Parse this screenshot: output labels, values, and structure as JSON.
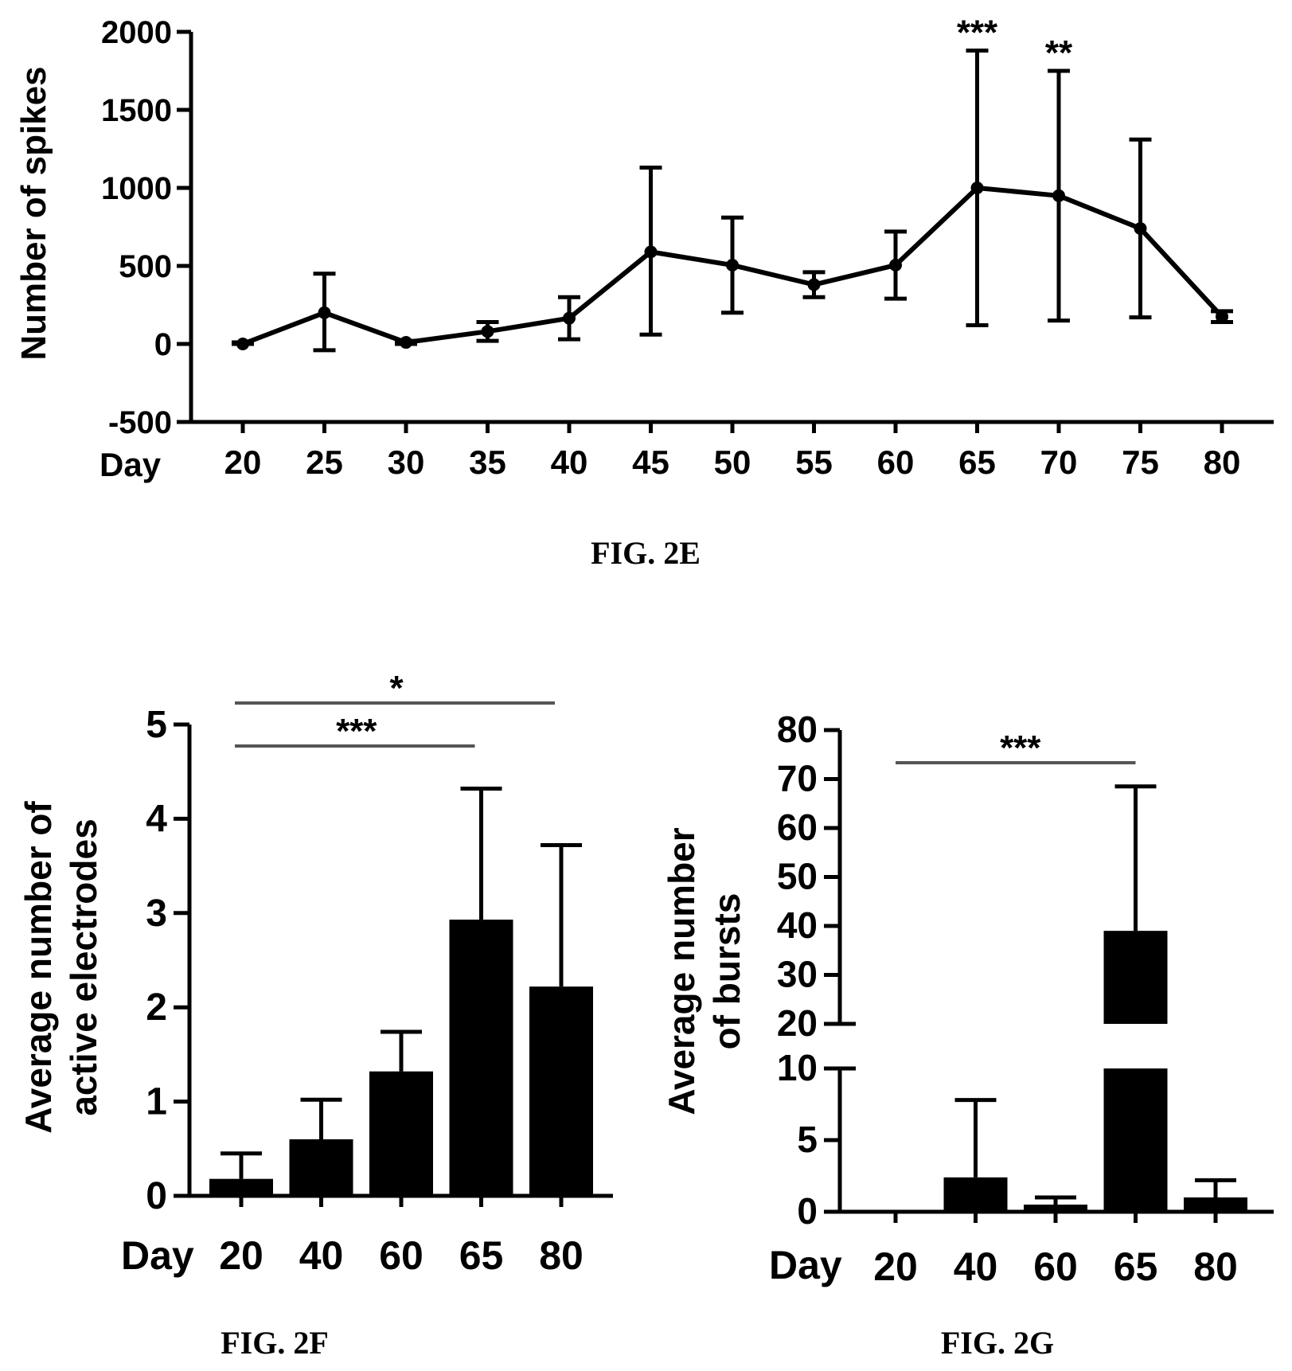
{
  "chart_data": [
    {
      "type": "line",
      "caption": "FIG. 2E",
      "ylabel": "Number of spikes",
      "x_prefix": "Day",
      "ylim": [
        -500,
        2000
      ],
      "yticks": [
        -500,
        0,
        500,
        1000,
        1500,
        2000
      ],
      "x": [
        20,
        25,
        30,
        35,
        40,
        45,
        50,
        55,
        60,
        65,
        70,
        75,
        80
      ],
      "values": [
        0,
        200,
        10,
        80,
        165,
        590,
        505,
        380,
        505,
        1000,
        950,
        740,
        175
      ],
      "error_low": [
        0,
        -40,
        0,
        20,
        30,
        60,
        200,
        300,
        290,
        120,
        150,
        170,
        140
      ],
      "error_high": [
        10,
        450,
        20,
        140,
        300,
        1130,
        810,
        460,
        720,
        1880,
        1750,
        1310,
        210
      ],
      "annotations": [
        {
          "x": 65,
          "text": "***"
        },
        {
          "x": 70,
          "text": "**"
        }
      ]
    },
    {
      "type": "bar",
      "caption": "FIG. 2F",
      "ylabel": [
        "Average number of",
        "active electrodes"
      ],
      "x_prefix": "Day",
      "categories": [
        "20",
        "40",
        "60",
        "65",
        "80"
      ],
      "values": [
        0.18,
        0.6,
        1.32,
        2.93,
        2.22
      ],
      "error_high": [
        0.45,
        1.02,
        1.74,
        4.32,
        3.72
      ],
      "ylim": [
        0,
        5
      ],
      "yticks": [
        0,
        1,
        2,
        3,
        4,
        5
      ],
      "significance": [
        {
          "from": "20",
          "to": "80",
          "text": "*"
        },
        {
          "from": "20",
          "to": "65",
          "text": "***"
        }
      ]
    },
    {
      "type": "bar",
      "caption": "FIG. 2G",
      "ylabel": [
        "Average number",
        "of bursts"
      ],
      "x_prefix": "Day",
      "categories": [
        "20",
        "40",
        "60",
        "65",
        "80"
      ],
      "values": [
        0,
        2.4,
        0.5,
        39,
        1
      ],
      "error_high": [
        0,
        7.8,
        1,
        68.5,
        2.2
      ],
      "axis_break": [
        10,
        20
      ],
      "yticks_lower": [
        0,
        5,
        10
      ],
      "yticks_upper": [
        20,
        30,
        40,
        50,
        60,
        70,
        80
      ],
      "significance": [
        {
          "from": "20",
          "to": "65",
          "text": "***"
        }
      ]
    }
  ]
}
